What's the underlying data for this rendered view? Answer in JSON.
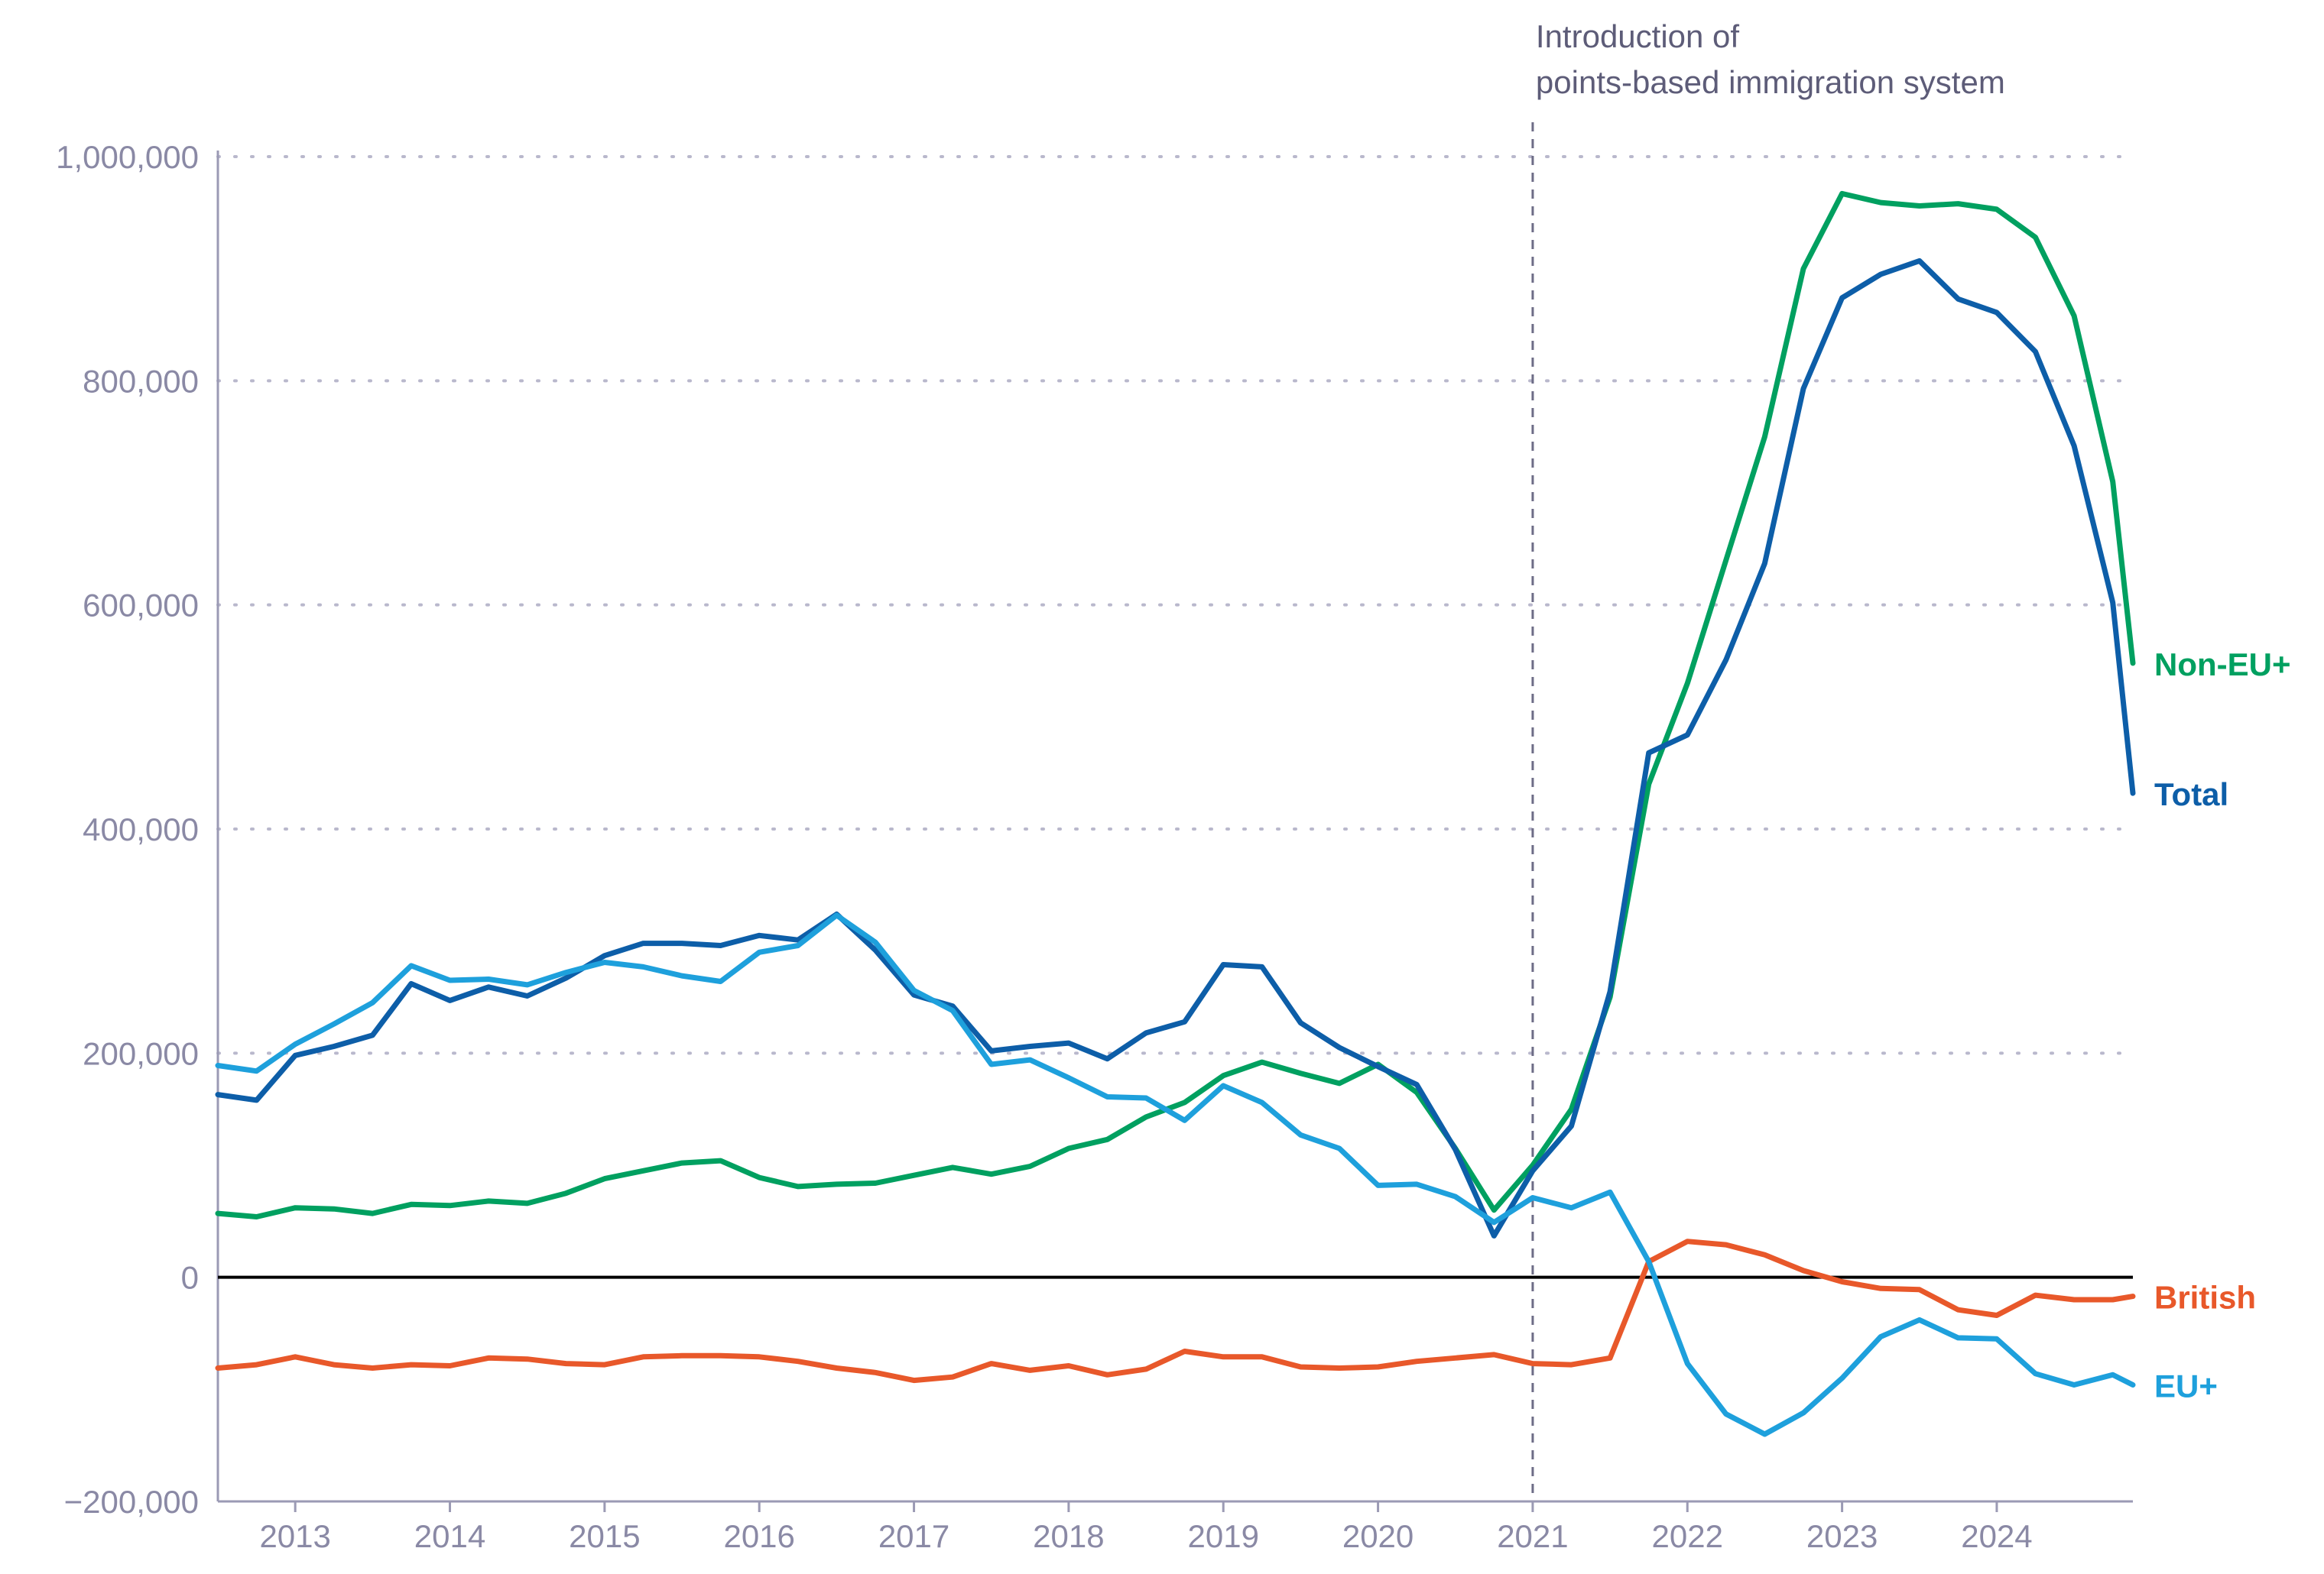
{
  "colors": {
    "non_eu": "#00a060",
    "total": "#0d5ea8",
    "british": "#e8582a",
    "eu": "#1ea0dc",
    "axis": "#9b9ab4",
    "grid": "#b9b8cc",
    "zero_line": "#000000",
    "event_line": "#6d6c86",
    "tick_text": "#8a89a5",
    "annotation_text": "#5d5c78"
  },
  "chart_data": {
    "type": "line",
    "title": "",
    "xlabel": "",
    "ylabel": "",
    "xlim": [
      2012.5,
      2024.88
    ],
    "ylim": [
      -200000,
      1000000
    ],
    "yticks": [
      -200000,
      0,
      200000,
      400000,
      600000,
      800000,
      1000000
    ],
    "ytick_labels": [
      "−200,000",
      "0",
      "200,000",
      "400,000",
      "600,000",
      "800,000",
      "1,000,000"
    ],
    "xticks": [
      2013,
      2014,
      2015,
      2016,
      2017,
      2018,
      2019,
      2020,
      2021,
      2022,
      2023,
      2024
    ],
    "xtick_labels": [
      "2013",
      "2014",
      "2015",
      "2016",
      "2017",
      "2018",
      "2019",
      "2020",
      "2021",
      "2022",
      "2023",
      "2024"
    ],
    "grid": "horizontal dotted",
    "legend": "direct labels at line ends (right)",
    "annotation": {
      "x": 2021.0,
      "lines": [
        "Introduction of",
        "points-based immigration system"
      ]
    },
    "x": [
      2012.5,
      2012.75,
      2013.0,
      2013.25,
      2013.5,
      2013.75,
      2014.0,
      2014.25,
      2014.5,
      2014.75,
      2015.0,
      2015.25,
      2015.5,
      2015.75,
      2016.0,
      2016.25,
      2016.5,
      2016.75,
      2017.0,
      2017.25,
      2017.5,
      2017.75,
      2018.0,
      2018.25,
      2018.5,
      2018.75,
      2019.0,
      2019.25,
      2019.5,
      2019.75,
      2020.0,
      2020.25,
      2020.5,
      2020.75,
      2021.0,
      2021.25,
      2021.5,
      2021.75,
      2022.0,
      2022.25,
      2022.5,
      2022.75,
      2023.0,
      2023.25,
      2023.5,
      2023.75,
      2024.0,
      2024.25,
      2024.5,
      2024.75,
      2024.88
    ],
    "series": [
      {
        "name": "Non-EU+",
        "color_key": "non_eu",
        "values": [
          57000,
          54000,
          62000,
          61000,
          57000,
          65000,
          64000,
          68000,
          66000,
          75000,
          88000,
          95000,
          102000,
          104000,
          89000,
          81000,
          83000,
          84000,
          91000,
          98000,
          92000,
          99000,
          115000,
          123000,
          143000,
          156000,
          180000,
          192000,
          182000,
          173000,
          190000,
          165000,
          115000,
          60000,
          100000,
          150000,
          250000,
          440000,
          530000,
          640000,
          750000,
          900000,
          967000,
          959000,
          956000,
          958000,
          953000,
          928000,
          858000,
          710000,
          548000
        ]
      },
      {
        "name": "Total",
        "color_key": "total",
        "values": [
          163000,
          158000,
          198000,
          206000,
          216000,
          262000,
          247000,
          259000,
          251000,
          267000,
          287000,
          298000,
          298000,
          296000,
          305000,
          301000,
          324000,
          292000,
          252000,
          242000,
          202000,
          206000,
          209000,
          195000,
          218000,
          228000,
          279000,
          277000,
          227000,
          205000,
          188000,
          172000,
          114000,
          37000,
          95000,
          135000,
          255000,
          468000,
          484000,
          551000,
          637000,
          793000,
          874000,
          895000,
          907000,
          873000,
          861000,
          826000,
          742000,
          602000,
          432000
        ]
      },
      {
        "name": "British",
        "color_key": "british",
        "values": [
          -81000,
          -78000,
          -71000,
          -78000,
          -81000,
          -78000,
          -79000,
          -72000,
          -73000,
          -77000,
          -78000,
          -71000,
          -70000,
          -70000,
          -71000,
          -75000,
          -81000,
          -85000,
          -92000,
          -89000,
          -77000,
          -83000,
          -79000,
          -87000,
          -82000,
          -66000,
          -71000,
          -71000,
          -80000,
          -81000,
          -80000,
          -75000,
          -72000,
          -69000,
          -77000,
          -78000,
          -72000,
          14000,
          32000,
          29000,
          20000,
          6000,
          -4000,
          -10000,
          -11000,
          -29000,
          -34000,
          -16000,
          -20000,
          -20000,
          -17000
        ]
      },
      {
        "name": "EU+",
        "color_key": "eu",
        "values": [
          189000,
          184000,
          208000,
          226000,
          245000,
          278000,
          265000,
          266000,
          261000,
          272000,
          281000,
          277000,
          269000,
          264000,
          290000,
          296000,
          323000,
          299000,
          256000,
          238000,
          190000,
          194000,
          178000,
          161000,
          160000,
          140000,
          171000,
          156000,
          127000,
          115000,
          82000,
          83000,
          72000,
          49000,
          71000,
          62000,
          76000,
          14000,
          -77000,
          -122000,
          -140000,
          -121000,
          -90000,
          -53000,
          -38000,
          -54000,
          -55000,
          -86000,
          -96000,
          -87000,
          -96000
        ]
      }
    ]
  }
}
